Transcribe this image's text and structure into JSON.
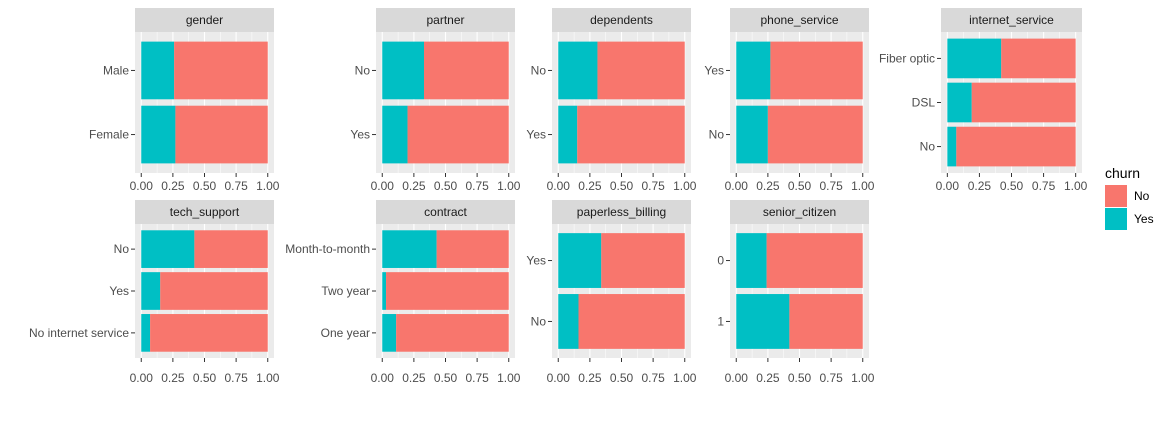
{
  "colors": {
    "No": "#F8766D",
    "Yes": "#00BFC4",
    "panel_bg": "#EBEBEB",
    "strip_bg": "#D9D9D9",
    "grid": "#FFFFFF"
  },
  "chart_data": {
    "type": "bar",
    "orientation": "horizontal",
    "stacked": "proportion",
    "xlim": [
      0,
      1
    ],
    "x_ticks": [
      "0.00",
      "0.25",
      "0.50",
      "0.75",
      "1.00"
    ],
    "grid": true,
    "legend": {
      "title": "churn",
      "entries": [
        "No",
        "Yes"
      ],
      "placement": "right"
    },
    "facets": [
      {
        "title": "gender",
        "categories": [
          "Male",
          "Female"
        ],
        "series": [
          {
            "name": "Yes",
            "values": [
              0.26,
              0.27
            ]
          },
          {
            "name": "No",
            "values": [
              0.74,
              0.73
            ]
          }
        ]
      },
      {
        "title": "partner",
        "categories": [
          "No",
          "Yes"
        ],
        "series": [
          {
            "name": "Yes",
            "values": [
              0.33,
              0.2
            ]
          },
          {
            "name": "No",
            "values": [
              0.67,
              0.8
            ]
          }
        ]
      },
      {
        "title": "dependents",
        "categories": [
          "No",
          "Yes"
        ],
        "series": [
          {
            "name": "Yes",
            "values": [
              0.31,
              0.15
            ]
          },
          {
            "name": "No",
            "values": [
              0.69,
              0.85
            ]
          }
        ]
      },
      {
        "title": "phone_service",
        "categories": [
          "Yes",
          "No"
        ],
        "series": [
          {
            "name": "Yes",
            "values": [
              0.27,
              0.25
            ]
          },
          {
            "name": "No",
            "values": [
              0.73,
              0.75
            ]
          }
        ]
      },
      {
        "title": "internet_service",
        "categories": [
          "Fiber optic",
          "DSL",
          "No"
        ],
        "series": [
          {
            "name": "Yes",
            "values": [
              0.42,
              0.19,
              0.07
            ]
          },
          {
            "name": "No",
            "values": [
              0.58,
              0.81,
              0.93
            ]
          }
        ]
      },
      {
        "title": "tech_support",
        "categories": [
          "No",
          "Yes",
          "No internet service"
        ],
        "series": [
          {
            "name": "Yes",
            "values": [
              0.42,
              0.15,
              0.07
            ]
          },
          {
            "name": "No",
            "values": [
              0.58,
              0.85,
              0.93
            ]
          }
        ]
      },
      {
        "title": "contract",
        "categories": [
          "Month-to-month",
          "Two year",
          "One year"
        ],
        "series": [
          {
            "name": "Yes",
            "values": [
              0.43,
              0.03,
              0.11
            ]
          },
          {
            "name": "No",
            "values": [
              0.57,
              0.97,
              0.89
            ]
          }
        ]
      },
      {
        "title": "paperless_billing",
        "categories": [
          "Yes",
          "No"
        ],
        "series": [
          {
            "name": "Yes",
            "values": [
              0.34,
              0.16
            ]
          },
          {
            "name": "No",
            "values": [
              0.66,
              0.84
            ]
          }
        ]
      },
      {
        "title": "senior_citizen",
        "categories": [
          "0",
          "1"
        ],
        "series": [
          {
            "name": "Yes",
            "values": [
              0.24,
              0.42
            ]
          },
          {
            "name": "No",
            "values": [
              0.76,
              0.58
            ]
          }
        ]
      }
    ]
  }
}
